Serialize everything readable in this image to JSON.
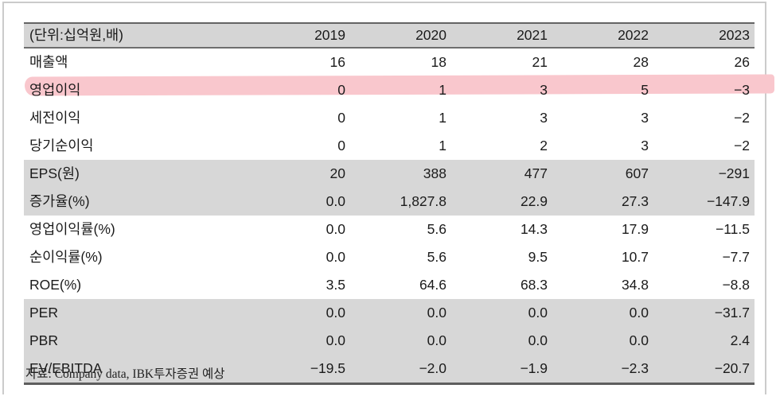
{
  "table": {
    "unit_label": "(단위:십억원,배)",
    "years": [
      "2019",
      "2020",
      "2021",
      "2022",
      "2023"
    ],
    "rows": [
      {
        "label": "매출액",
        "values": [
          "16",
          "18",
          "21",
          "28",
          "26"
        ],
        "shade": false,
        "highlight": false
      },
      {
        "label": "영업이익",
        "values": [
          "0",
          "1",
          "3",
          "5",
          "−3"
        ],
        "shade": false,
        "highlight": true
      },
      {
        "label": "세전이익",
        "values": [
          "0",
          "1",
          "3",
          "3",
          "−2"
        ],
        "shade": false,
        "highlight": false
      },
      {
        "label": "당기순이익",
        "values": [
          "0",
          "1",
          "2",
          "3",
          "−2"
        ],
        "shade": false,
        "highlight": false
      },
      {
        "label": "EPS(원)",
        "values": [
          "20",
          "388",
          "477",
          "607",
          "−291"
        ],
        "shade": true,
        "highlight": false
      },
      {
        "label": "증가율(%)",
        "values": [
          "0.0",
          "1,827.8",
          "22.9",
          "27.3",
          "−147.9"
        ],
        "shade": true,
        "highlight": false
      },
      {
        "label": "영업이익률(%)",
        "values": [
          "0.0",
          "5.6",
          "14.3",
          "17.9",
          "−11.5"
        ],
        "shade": false,
        "highlight": false
      },
      {
        "label": "순이익률(%)",
        "values": [
          "0.0",
          "5.6",
          "9.5",
          "10.7",
          "−7.7"
        ],
        "shade": false,
        "highlight": false
      },
      {
        "label": "ROE(%)",
        "values": [
          "3.5",
          "64.6",
          "68.3",
          "34.8",
          "−8.8"
        ],
        "shade": false,
        "highlight": false
      },
      {
        "label": "PER",
        "values": [
          "0.0",
          "0.0",
          "0.0",
          "0.0",
          "−31.7"
        ],
        "shade": true,
        "highlight": false
      },
      {
        "label": "PBR",
        "values": [
          "0.0",
          "0.0",
          "0.0",
          "0.0",
          "2.4"
        ],
        "shade": true,
        "highlight": false
      },
      {
        "label": "EV/EBITDA",
        "values": [
          "−19.5",
          "−2.0",
          "−1.9",
          "−2.3",
          "−20.7"
        ],
        "shade": true,
        "highlight": false
      }
    ],
    "source": "자료: Company data, IBK투자증권 예상"
  },
  "colors": {
    "header_bg": "#d5d5d5",
    "band_bg": "#d7d7d7",
    "heavy_rule": "#646464",
    "highlight_pink": "#f9c7cd",
    "frame_gray": "#cbcbcb"
  }
}
